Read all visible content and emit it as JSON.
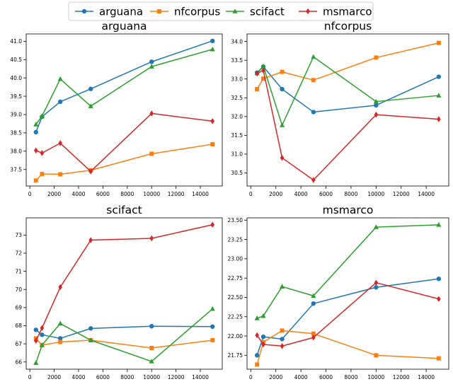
{
  "legend": {
    "placement": "top-center",
    "entries": [
      {
        "name": "arguana",
        "color": "#1f77b4",
        "marker": "circle"
      },
      {
        "name": "nfcorpus",
        "color": "#ff7f0e",
        "marker": "square"
      },
      {
        "name": "scifact",
        "color": "#2ca02c",
        "marker": "triangle"
      },
      {
        "name": "msmarco",
        "color": "#d62728",
        "marker": "diamond"
      }
    ]
  },
  "chart_data": [
    {
      "type": "line",
      "title": "arguana",
      "x": [
        500,
        1000,
        2500,
        5000,
        10000,
        15000
      ],
      "xlim": [
        -300,
        15800
      ],
      "xticks": [
        0,
        2000,
        4000,
        6000,
        8000,
        10000,
        12000,
        14000
      ],
      "ylim": [
        37.05,
        41.2
      ],
      "yticks": [
        37.5,
        38.0,
        38.5,
        39.0,
        39.5,
        40.0,
        40.5,
        41.0
      ],
      "ytick_decimals": 1,
      "grid": false,
      "series": [
        {
          "name": "arguana",
          "values": [
            38.52,
            38.94,
            39.35,
            39.7,
            40.44,
            41.01
          ]
        },
        {
          "name": "nfcorpus",
          "values": [
            37.2,
            37.38,
            37.37,
            37.48,
            37.93,
            38.19
          ]
        },
        {
          "name": "scifact",
          "values": [
            38.73,
            38.96,
            39.97,
            39.23,
            40.31,
            40.78
          ]
        },
        {
          "name": "msmarco",
          "values": [
            38.02,
            37.95,
            38.22,
            37.45,
            39.03,
            38.82
          ]
        }
      ]
    },
    {
      "type": "line",
      "title": "nfcorpus",
      "x": [
        500,
        1000,
        2500,
        5000,
        10000,
        15000
      ],
      "xlim": [
        -300,
        15800
      ],
      "xticks": [
        0,
        2000,
        4000,
        6000,
        8000,
        10000,
        12000,
        14000
      ],
      "ylim": [
        30.15,
        34.2
      ],
      "yticks": [
        30.5,
        31.0,
        31.5,
        32.0,
        32.5,
        33.0,
        33.5,
        34.0
      ],
      "ytick_decimals": 1,
      "grid": false,
      "series": [
        {
          "name": "arguana",
          "values": [
            33.17,
            33.33,
            32.73,
            32.12,
            32.3,
            33.06
          ]
        },
        {
          "name": "nfcorpus",
          "values": [
            32.73,
            33.01,
            33.19,
            32.97,
            33.57,
            33.96
          ]
        },
        {
          "name": "scifact",
          "values": [
            33.15,
            33.34,
            31.77,
            33.59,
            32.4,
            32.56
          ]
        },
        {
          "name": "msmarco",
          "values": [
            33.15,
            33.23,
            30.9,
            30.31,
            32.05,
            31.93
          ]
        }
      ]
    },
    {
      "type": "line",
      "title": "scifact",
      "x": [
        500,
        1000,
        2500,
        5000,
        10000,
        15000
      ],
      "xlim": [
        -300,
        15800
      ],
      "xticks": [
        0,
        2000,
        4000,
        6000,
        8000,
        10000,
        12000,
        14000
      ],
      "ylim": [
        65.6,
        73.95
      ],
      "yticks": [
        66,
        67,
        68,
        69,
        70,
        71,
        72,
        73
      ],
      "ytick_decimals": 0,
      "grid": false,
      "series": [
        {
          "name": "arguana",
          "values": [
            67.77,
            67.5,
            67.3,
            67.85,
            67.97,
            67.95
          ]
        },
        {
          "name": "nfcorpus",
          "values": [
            67.3,
            66.93,
            67.1,
            67.2,
            66.77,
            67.2
          ]
        },
        {
          "name": "scifact",
          "values": [
            65.95,
            66.93,
            68.12,
            67.2,
            66.03,
            68.93
          ]
        },
        {
          "name": "msmarco",
          "values": [
            67.17,
            67.87,
            70.13,
            72.72,
            72.82,
            73.57
          ]
        }
      ]
    },
    {
      "type": "line",
      "title": "msmarco",
      "x": [
        500,
        1000,
        2500,
        5000,
        10000,
        15000
      ],
      "xlim": [
        -300,
        15800
      ],
      "xticks": [
        0,
        2000,
        4000,
        6000,
        8000,
        10000,
        12000,
        14000
      ],
      "ylim": [
        21.57,
        23.53
      ],
      "yticks": [
        21.75,
        22.0,
        22.25,
        22.5,
        22.75,
        23.0,
        23.25,
        23.5
      ],
      "ytick_decimals": 2,
      "grid": false,
      "series": [
        {
          "name": "arguana",
          "values": [
            21.75,
            21.99,
            21.96,
            22.42,
            22.63,
            22.74
          ]
        },
        {
          "name": "nfcorpus",
          "values": [
            21.63,
            21.92,
            22.07,
            22.03,
            21.75,
            21.71
          ]
        },
        {
          "name": "scifact",
          "values": [
            22.23,
            22.26,
            22.64,
            22.52,
            23.41,
            23.44
          ]
        },
        {
          "name": "msmarco",
          "values": [
            22.01,
            21.89,
            21.87,
            21.98,
            22.69,
            22.48
          ]
        }
      ]
    }
  ]
}
